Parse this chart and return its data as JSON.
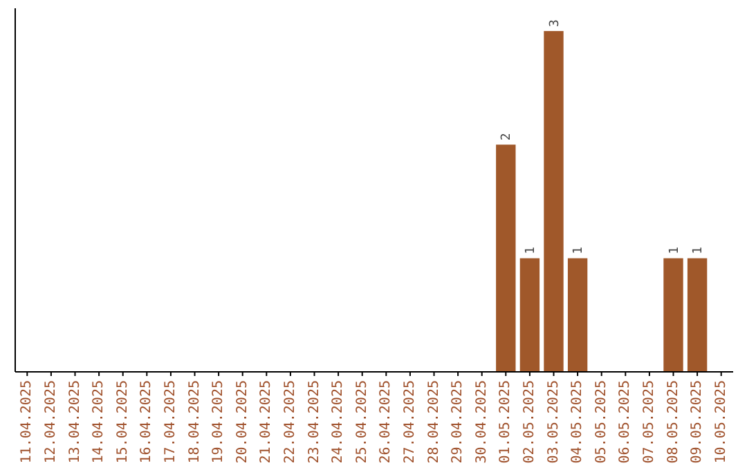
{
  "chart_data": {
    "type": "bar",
    "categories": [
      "11.04.2025",
      "12.04.2025",
      "13.04.2025",
      "14.04.2025",
      "15.04.2025",
      "16.04.2025",
      "17.04.2025",
      "18.04.2025",
      "19.04.2025",
      "20.04.2025",
      "21.04.2025",
      "22.04.2025",
      "23.04.2025",
      "24.04.2025",
      "25.04.2025",
      "26.04.2025",
      "27.04.2025",
      "28.04.2025",
      "29.04.2025",
      "30.04.2025",
      "01.05.2025",
      "02.05.2025",
      "03.05.2025",
      "04.05.2025",
      "05.05.2025",
      "06.05.2025",
      "07.05.2025",
      "08.05.2025",
      "09.05.2025",
      "10.05.2025"
    ],
    "values": [
      null,
      null,
      null,
      null,
      null,
      null,
      null,
      null,
      null,
      null,
      null,
      null,
      null,
      null,
      null,
      null,
      null,
      null,
      null,
      null,
      2,
      1,
      3,
      1,
      null,
      null,
      null,
      1,
      1,
      null
    ],
    "data_labels": true,
    "color": "#a0582a",
    "ylim": [
      0,
      3.2
    ],
    "tick_labels": "x"
  }
}
